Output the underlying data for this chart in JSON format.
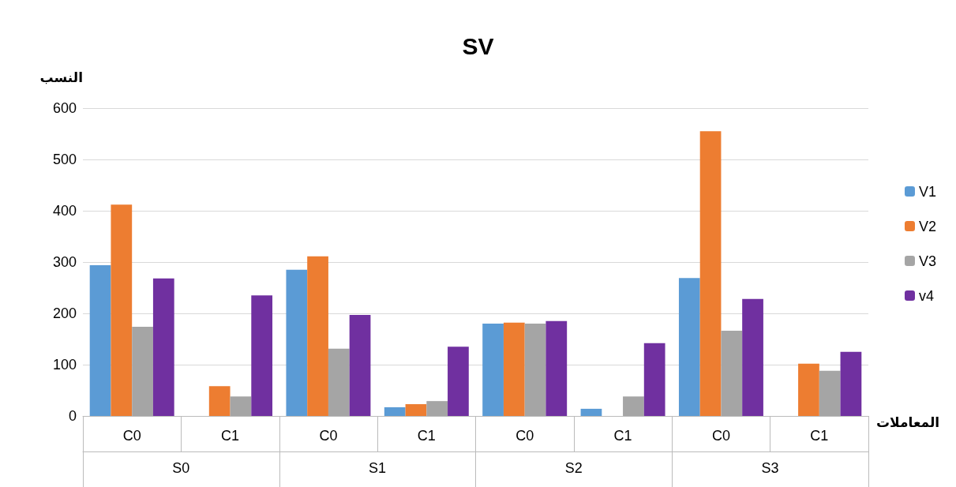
{
  "chart_data": {
    "type": "bar",
    "title": "SV",
    "ylabel": "النسب",
    "xlabel": "المعاملات",
    "categories": [
      "C0",
      "C1",
      "C0",
      "C1",
      "C0",
      "C1",
      "C0",
      "C1"
    ],
    "annotations": [
      "S0",
      "S1",
      "S2",
      "S3"
    ],
    "series": [
      {
        "name": "V1",
        "color": "#5b9bd5",
        "values": [
          294,
          0,
          285,
          17,
          180,
          14,
          269,
          0
        ]
      },
      {
        "name": "V2",
        "color": "#ed7d31",
        "values": [
          412,
          58,
          311,
          23,
          182,
          0,
          555,
          102
        ]
      },
      {
        "name": "V3",
        "color": "#a5a5a5",
        "values": [
          174,
          38,
          131,
          29,
          180,
          38,
          166,
          88
        ]
      },
      {
        "name": "v4",
        "color": "#7030a0",
        "values": [
          268,
          235,
          197,
          135,
          185,
          142,
          228,
          125
        ]
      }
    ],
    "ylim": [
      0,
      600
    ],
    "yticks": [
      0,
      100,
      200,
      300,
      400,
      500,
      600
    ],
    "grid": "y",
    "legend": "right"
  }
}
